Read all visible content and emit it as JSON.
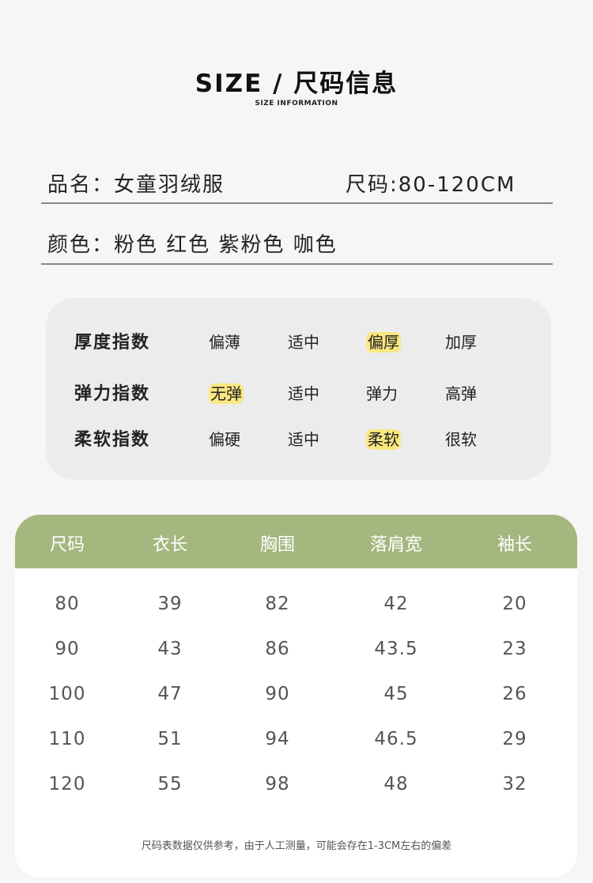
{
  "header": {
    "title": "SIZE / 尺码信息",
    "subtitle": "SIZE INFORMATION"
  },
  "product": {
    "name_label": "品名：女童羽绒服",
    "size_label": "尺码:80-120CM",
    "color_label": "颜色：粉色 红色 紫粉色 咖色"
  },
  "indices": [
    {
      "label": "厚度指数",
      "options": [
        "偏薄",
        "适中",
        "偏厚",
        "加厚"
      ],
      "selected": 2
    },
    {
      "label": "弹力指数",
      "options": [
        "无弹",
        "适中",
        "弹力",
        "高弹"
      ],
      "selected": 0
    },
    {
      "label": "柔软指数",
      "options": [
        "偏硬",
        "适中",
        "柔软",
        "很软"
      ],
      "selected": 2
    }
  ],
  "highlight_color": "#fbe77f",
  "table": {
    "header_color": "#a4b77f",
    "columns": [
      "尺码",
      "衣长",
      "胸围",
      "落肩宽",
      "袖长"
    ],
    "rows": [
      [
        "80",
        "39",
        "82",
        "42",
        "20"
      ],
      [
        "90",
        "43",
        "86",
        "43.5",
        "23"
      ],
      [
        "100",
        "47",
        "90",
        "45",
        "26"
      ],
      [
        "110",
        "51",
        "94",
        "46.5",
        "29"
      ],
      [
        "120",
        "55",
        "98",
        "48",
        "32"
      ]
    ]
  },
  "note": "尺码表数据仅供参考，由于人工测量，可能会存在1-3CM左右的偏差"
}
